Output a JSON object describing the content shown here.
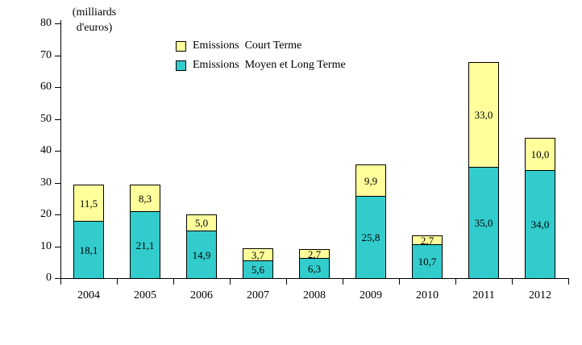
{
  "chart_data": {
    "type": "bar",
    "stacked": true,
    "unit_label": {
      "line1": "(milliards",
      "line2": "d'euros)"
    },
    "categories": [
      "2004",
      "2005",
      "2006",
      "2007",
      "2008",
      "2009",
      "2010",
      "2011",
      "2012"
    ],
    "series": [
      {
        "name": "Emissions Moyen et Long Terme",
        "color": "#33cccc",
        "values": [
          18.1,
          21.1,
          14.9,
          5.6,
          6.3,
          25.8,
          10.7,
          35.0,
          34.0
        ],
        "labels": [
          "18,1",
          "21,1",
          "14,9",
          "5,6",
          "6,3",
          "25,8",
          "10,7",
          "35,0",
          "34,0"
        ]
      },
      {
        "name": "Emissions Court Terme",
        "color": "#ffff9c",
        "values": [
          11.5,
          8.3,
          5.0,
          3.7,
          2.7,
          9.9,
          2.7,
          33.0,
          10.0
        ],
        "labels": [
          "11,5",
          "8,3",
          "5,0",
          "3,7",
          "2,7",
          "9,9",
          "2,7",
          "33,0",
          "10,0"
        ]
      }
    ],
    "legend": [
      {
        "label": "Emissions  Court Terme",
        "swatch_color": "#ffff9c"
      },
      {
        "label": "Emissions  Moyen et Long Terme",
        "swatch_color": "#33cccc"
      }
    ],
    "y_axis": {
      "min": 0,
      "max": 80,
      "step": 10,
      "ticks": [
        "0",
        "10",
        "20",
        "30",
        "40",
        "50",
        "60",
        "70",
        "80"
      ]
    },
    "layout": {
      "grid": false,
      "legend_position": "top-center"
    }
  }
}
